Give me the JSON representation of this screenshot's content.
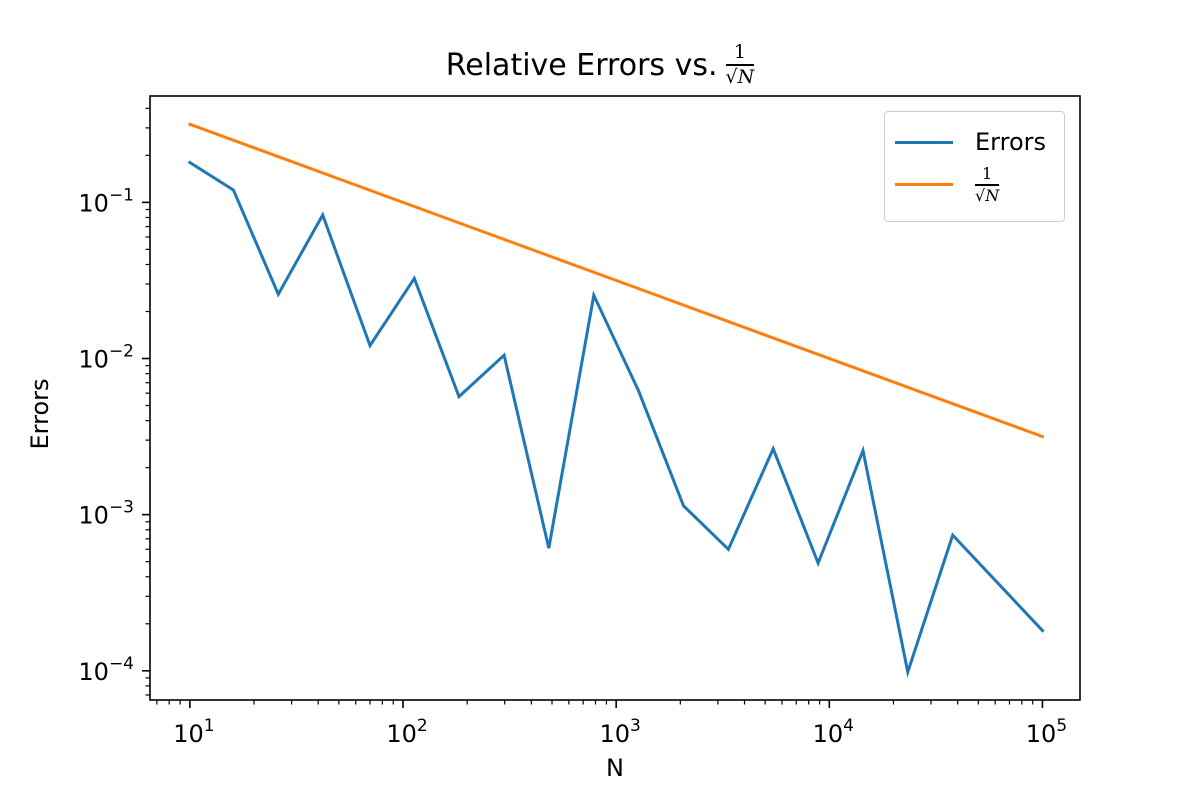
{
  "chart_data": {
    "type": "line",
    "title": "Relative Errors vs.",
    "title_math": {
      "numerator": "1",
      "denominator_radical": "√",
      "denominator_var": "N"
    },
    "xlabel": "N",
    "ylabel": "Errors",
    "xscale": "log",
    "yscale": "log",
    "xlim": [
      6.5,
      150000
    ],
    "ylim": [
      6.5e-05,
      0.48
    ],
    "xticks": [
      {
        "value": 10,
        "base": "10",
        "exp": "1"
      },
      {
        "value": 100,
        "base": "10",
        "exp": "2"
      },
      {
        "value": 1000,
        "base": "10",
        "exp": "3"
      },
      {
        "value": 10000,
        "base": "10",
        "exp": "4"
      },
      {
        "value": 100000,
        "base": "10",
        "exp": "5"
      }
    ],
    "yticks": [
      {
        "value": 0.1,
        "base": "10",
        "exp": "−1"
      },
      {
        "value": 0.01,
        "base": "10",
        "exp": "−2"
      },
      {
        "value": 0.001,
        "base": "10",
        "exp": "−3"
      },
      {
        "value": 0.0001,
        "base": "10",
        "exp": "−4"
      }
    ],
    "grid": false,
    "legend_position": "top-right",
    "series": [
      {
        "name": "Errors",
        "color": "#1f77b4",
        "x": [
          10,
          16,
          26,
          42,
          70,
          113,
          183,
          298,
          483,
          785,
          1274,
          2069,
          3360,
          5456,
          8859,
          14384,
          23357,
          37927,
          100000
        ],
        "y": [
          0.18,
          0.12,
          0.0258,
          0.083,
          0.0121,
          0.0326,
          0.0057,
          0.0105,
          0.00061,
          0.0254,
          0.0062,
          0.00114,
          0.0006,
          0.00264,
          0.00049,
          0.00257,
          9.82e-05,
          0.00074,
          0.000181
        ]
      },
      {
        "name": "1/√N",
        "legend_math": {
          "numerator": "1",
          "denominator_radical": "√",
          "denominator_var": "N"
        },
        "color": "#ff7f0e",
        "x": [
          10,
          100000
        ],
        "y": [
          0.3162,
          0.003162
        ]
      }
    ]
  }
}
